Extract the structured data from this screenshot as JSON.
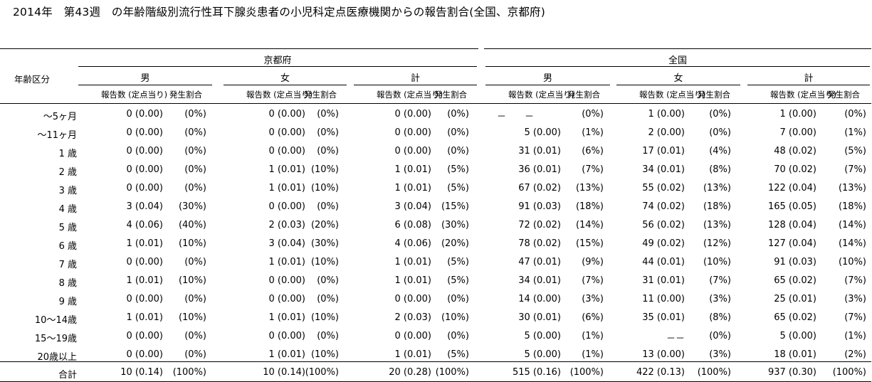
{
  "title": "2014年　第43週　の年齢階級別流行性耳下腺炎患者の小児科定点医療機関からの報告割合(全国、京都府)",
  "header": {
    "age_col": "年齢区分",
    "regions": [
      "京都府",
      "全国"
    ],
    "sexes": [
      "男",
      "女",
      "計"
    ],
    "col_reports": "報告数 (定点当り)",
    "col_ratio": "発生割合"
  },
  "rows": [
    {
      "age": "～5ヶ月",
      "v": [
        [
          "0 (0.00)",
          "(0%)"
        ],
        [
          "0 (0.00)",
          "(0%)"
        ],
        [
          "0 (0.00)",
          "(0%)"
        ],
        [
          "－　　－",
          "(0%)"
        ],
        [
          "1 (0.00)",
          "(0%)"
        ],
        [
          "1 (0.00)",
          "(0%)"
        ]
      ]
    },
    {
      "age": "～11ヶ月",
      "v": [
        [
          "0 (0.00)",
          "(0%)"
        ],
        [
          "0 (0.00)",
          "(0%)"
        ],
        [
          "0 (0.00)",
          "(0%)"
        ],
        [
          "5 (0.00)",
          "(1%)"
        ],
        [
          "2 (0.00)",
          "(0%)"
        ],
        [
          "7 (0.00)",
          "(1%)"
        ]
      ]
    },
    {
      "age": "1 歳",
      "v": [
        [
          "0 (0.00)",
          "(0%)"
        ],
        [
          "0 (0.00)",
          "(0%)"
        ],
        [
          "0 (0.00)",
          "(0%)"
        ],
        [
          "31 (0.01)",
          "(6%)"
        ],
        [
          "17 (0.01)",
          "(4%)"
        ],
        [
          "48 (0.02)",
          "(5%)"
        ]
      ]
    },
    {
      "age": "2 歳",
      "v": [
        [
          "0 (0.00)",
          "(0%)"
        ],
        [
          "1 (0.01)",
          "(10%)"
        ],
        [
          "1 (0.01)",
          "(5%)"
        ],
        [
          "36 (0.01)",
          "(7%)"
        ],
        [
          "34 (0.01)",
          "(8%)"
        ],
        [
          "70 (0.02)",
          "(7%)"
        ]
      ]
    },
    {
      "age": "3 歳",
      "v": [
        [
          "0 (0.00)",
          "(0%)"
        ],
        [
          "1 (0.01)",
          "(10%)"
        ],
        [
          "1 (0.01)",
          "(5%)"
        ],
        [
          "67 (0.02)",
          "(13%)"
        ],
        [
          "55 (0.02)",
          "(13%)"
        ],
        [
          "122 (0.04)",
          "(13%)"
        ]
      ]
    },
    {
      "age": "4 歳",
      "v": [
        [
          "3 (0.04)",
          "(30%)"
        ],
        [
          "0 (0.00)",
          "(0%)"
        ],
        [
          "3 (0.04)",
          "(15%)"
        ],
        [
          "91 (0.03)",
          "(18%)"
        ],
        [
          "74 (0.02)",
          "(18%)"
        ],
        [
          "165 (0.05)",
          "(18%)"
        ]
      ]
    },
    {
      "age": "5 歳",
      "v": [
        [
          "4 (0.06)",
          "(40%)"
        ],
        [
          "2 (0.03)",
          "(20%)"
        ],
        [
          "6 (0.08)",
          "(30%)"
        ],
        [
          "72 (0.02)",
          "(14%)"
        ],
        [
          "56 (0.02)",
          "(13%)"
        ],
        [
          "128 (0.04)",
          "(14%)"
        ]
      ]
    },
    {
      "age": "6 歳",
      "v": [
        [
          "1 (0.01)",
          "(10%)"
        ],
        [
          "3 (0.04)",
          "(30%)"
        ],
        [
          "4 (0.06)",
          "(20%)"
        ],
        [
          "78 (0.02)",
          "(15%)"
        ],
        [
          "49 (0.02)",
          "(12%)"
        ],
        [
          "127 (0.04)",
          "(14%)"
        ]
      ]
    },
    {
      "age": "7 歳",
      "v": [
        [
          "0 (0.00)",
          "(0%)"
        ],
        [
          "1 (0.01)",
          "(10%)"
        ],
        [
          "1 (0.01)",
          "(5%)"
        ],
        [
          "47 (0.01)",
          "(9%)"
        ],
        [
          "44 (0.01)",
          "(10%)"
        ],
        [
          "91 (0.03)",
          "(10%)"
        ]
      ]
    },
    {
      "age": "8 歳",
      "v": [
        [
          "1 (0.01)",
          "(10%)"
        ],
        [
          "0 (0.00)",
          "(0%)"
        ],
        [
          "1 (0.01)",
          "(5%)"
        ],
        [
          "34 (0.01)",
          "(7%)"
        ],
        [
          "31 (0.01)",
          "(7%)"
        ],
        [
          "65 (0.02)",
          "(7%)"
        ]
      ]
    },
    {
      "age": "9 歳",
      "v": [
        [
          "0 (0.00)",
          "(0%)"
        ],
        [
          "0 (0.00)",
          "(0%)"
        ],
        [
          "0 (0.00)",
          "(0%)"
        ],
        [
          "14 (0.00)",
          "(3%)"
        ],
        [
          "11 (0.00)",
          "(3%)"
        ],
        [
          "25 (0.01)",
          "(3%)"
        ]
      ]
    },
    {
      "age": "10～14歳",
      "v": [
        [
          "1 (0.01)",
          "(10%)"
        ],
        [
          "1 (0.01)",
          "(10%)"
        ],
        [
          "2 (0.03)",
          "(10%)"
        ],
        [
          "30 (0.01)",
          "(6%)"
        ],
        [
          "35 (0.01)",
          "(8%)"
        ],
        [
          "65 (0.02)",
          "(7%)"
        ]
      ]
    },
    {
      "age": "15～19歳",
      "v": [
        [
          "0 (0.00)",
          "(0%)"
        ],
        [
          "0 (0.00)",
          "(0%)"
        ],
        [
          "0 (0.00)",
          "(0%)"
        ],
        [
          "5 (0.00)",
          "(1%)"
        ],
        [
          "－－",
          "(0%)"
        ],
        [
          "5 (0.00)",
          "(1%)"
        ]
      ]
    },
    {
      "age": "20歳以上",
      "v": [
        [
          "0 (0.00)",
          "(0%)"
        ],
        [
          "1 (0.01)",
          "(10%)"
        ],
        [
          "1 (0.01)",
          "(5%)"
        ],
        [
          "5 (0.00)",
          "(1%)"
        ],
        [
          "13 (0.00)",
          "(3%)"
        ],
        [
          "18 (0.01)",
          "(2%)"
        ]
      ]
    }
  ],
  "total": {
    "age": "合計",
    "v": [
      [
        "10 (0.14)",
        "(100%)"
      ],
      [
        "10 (0.14)",
        "(100%)"
      ],
      [
        "20 (0.28)",
        "(100%)"
      ],
      [
        "515 (0.16)",
        "(100%)"
      ],
      [
        "422 (0.13)",
        "(100%)"
      ],
      [
        "937 (0.30)",
        "(100%)"
      ]
    ]
  }
}
